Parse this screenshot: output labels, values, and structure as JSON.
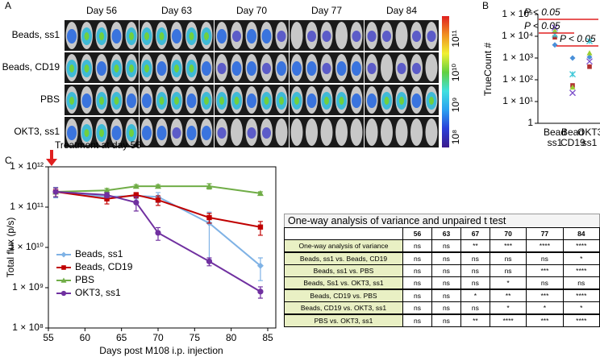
{
  "panel_a": {
    "label": "A",
    "days": [
      "Day 56",
      "Day 63",
      "Day 70",
      "Day 77",
      "Day 84"
    ],
    "rows": [
      "Beads, ss1",
      "Beads, CD19",
      "PBS",
      "OKT3, ss1"
    ],
    "colorbar_labels": [
      "10⁸",
      "10⁹",
      "10¹⁰",
      "10¹¹"
    ]
  },
  "chart_data": [
    {
      "type": "scatter",
      "label": "B",
      "ylabel": "TrueCount #",
      "categories": [
        "Bead ss1",
        "Bead CD19",
        "OKT3 ss1"
      ],
      "log_y": true,
      "ylim": [
        1,
        100000
      ],
      "yticks": [
        1,
        {
          "value": 10,
          "label": "1 × 10¹"
        },
        {
          "value": 100,
          "label": "1 × 10²"
        },
        {
          "value": 1000,
          "label": "1 × 10³"
        },
        {
          "value": 10000,
          "label": "1 × 10⁴"
        },
        {
          "value": 100000,
          "label": "1 × 10⁵"
        }
      ],
      "series": [
        {
          "color": "#4a90d9",
          "marker": "diamond",
          "values": [
            4000,
            1000,
            1100
          ]
        },
        {
          "color": "#b03030",
          "marker": "square",
          "values": [
            9000,
            55,
            400
          ]
        },
        {
          "color": "#9acd32",
          "marker": "triangle",
          "values": [
            18000,
            45,
            1700
          ]
        },
        {
          "color": "#7b4fc9",
          "marker": "x",
          "values": [
            25000,
            25,
            700
          ]
        },
        {
          "color": "#40c8d8",
          "marker": "asterisk",
          "values": [
            12000,
            180,
            6000
          ]
        }
      ],
      "annotations": [
        "P < 0.05",
        "P < 0.05",
        "P < 0.05"
      ],
      "annotation_color": "#e02020"
    },
    {
      "type": "line",
      "label": "C",
      "xlabel": "Days post M108 i.p. injection",
      "ylabel": "Total flux (p/s)",
      "annotation": "Treatment at day 56",
      "log_y": true,
      "x": [
        56,
        63,
        67,
        70,
        77,
        84
      ],
      "xlim": [
        55,
        85
      ],
      "xticks": [
        55,
        60,
        65,
        70,
        75,
        80,
        85
      ],
      "ylim": [
        100000000,
        1000000000000
      ],
      "yticks": [
        {
          "value": 100000000,
          "label": "1 × 10⁸"
        },
        {
          "value": 1000000000,
          "label": "1 × 10⁹"
        },
        {
          "value": 10000000000,
          "label": "1 × 10¹⁰"
        },
        {
          "value": 100000000000,
          "label": "1 × 10¹¹"
        },
        {
          "value": 1000000000000,
          "label": "1 × 10¹²"
        }
      ],
      "legend": "lower left",
      "series": [
        {
          "name": "Beads, ss1",
          "color": "#7fb2e5",
          "marker": "diamond",
          "values": [
            240000000000,
            180000000000,
            190000000000,
            180000000000,
            40000000000,
            3500000000
          ],
          "errors": [
            70000000000,
            30000000000,
            30000000000,
            50000000000,
            35000000000,
            2000000000
          ]
        },
        {
          "name": "Beads, CD19",
          "color": "#c00000",
          "marker": "square",
          "values": [
            240000000000,
            160000000000,
            200000000000,
            150000000000,
            55000000000,
            32000000000
          ],
          "errors": [
            60000000000,
            40000000000,
            30000000000,
            40000000000,
            15000000000,
            12000000000
          ]
        },
        {
          "name": "PBS",
          "color": "#70ad47",
          "marker": "triangle",
          "values": [
            240000000000,
            260000000000,
            330000000000,
            330000000000,
            330000000000,
            220000000000
          ],
          "errors": [
            60000000000,
            30000000000,
            30000000000,
            30000000000,
            50000000000,
            20000000000
          ]
        },
        {
          "name": "OKT3, ss1",
          "color": "#7030a0",
          "marker": "circle",
          "values": [
            240000000000,
            200000000000,
            130000000000,
            23000000000,
            4500000000,
            800000000
          ],
          "errors": [
            60000000000,
            30000000000,
            50000000000,
            8000000000,
            1000000000,
            250000000
          ]
        }
      ]
    }
  ],
  "table": {
    "title": "One-way analysis of variance and unpaired t test",
    "columns": [
      "56",
      "63",
      "67",
      "70",
      "77",
      "84"
    ],
    "rows": [
      {
        "label": "One-way analysis of variance",
        "cells": [
          "ns",
          "ns",
          "**",
          "***",
          "****",
          "****"
        ]
      },
      {
        "label": "Beads, ss1 vs. Beads, CD19",
        "cells": [
          "ns",
          "ns",
          "ns",
          "ns",
          "ns",
          "*"
        ]
      },
      {
        "label": "Beads, ss1 vs. PBS",
        "cells": [
          "ns",
          "ns",
          "ns",
          "ns",
          "***",
          "****"
        ]
      },
      {
        "label": "Beads, Ss1 vs. OKT3, ss1",
        "cells": [
          "ns",
          "ns",
          "ns",
          "*",
          "ns",
          "ns"
        ]
      },
      {
        "label": "Beads, CD19 vs. PBS",
        "cells": [
          "ns",
          "ns",
          "*",
          "**",
          "***",
          "****"
        ]
      },
      {
        "label": "Beads, CD19 vs. OKT3, ss1",
        "cells": [
          "ns",
          "ns",
          "ns",
          "*",
          "*",
          "*"
        ]
      },
      {
        "label": "PBS vs. OKT3, ss1",
        "cells": [
          "ns",
          "ns",
          "**",
          "****",
          "***",
          "****"
        ]
      }
    ]
  }
}
